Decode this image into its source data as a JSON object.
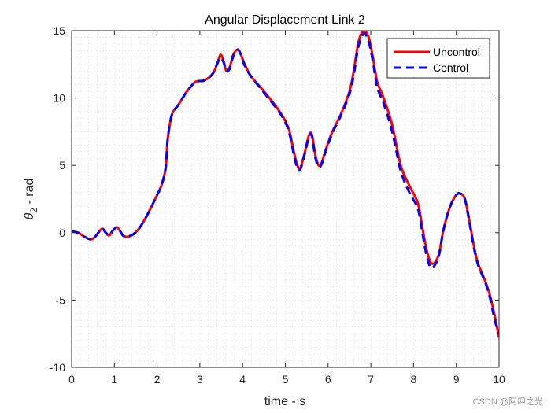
{
  "chart_data": {
    "type": "line",
    "title": "Angular Displacement Link 2",
    "xlabel": "time - s",
    "ylabel_main": "θ",
    "ylabel_sub": "2",
    "ylabel_rest": " - rad",
    "xlim": [
      0,
      10
    ],
    "ylim": [
      -10,
      15
    ],
    "xticks": [
      0,
      1,
      2,
      3,
      4,
      5,
      6,
      7,
      8,
      9,
      10
    ],
    "yticks": [
      -10,
      -5,
      0,
      5,
      10,
      15
    ],
    "grid": "minor-dotted",
    "legend_position": "top-right",
    "colors": {
      "uncontrol": "#ff0000",
      "control": "#0000ff",
      "axis": "#262626",
      "grid": "#d0d0d0"
    },
    "series": [
      {
        "name": "Uncontrol",
        "style": "solid",
        "color": "#ff0000",
        "x": [
          0,
          0.15,
          0.3,
          0.45,
          0.55,
          0.65,
          0.72,
          0.8,
          0.88,
          0.95,
          1.05,
          1.12,
          1.2,
          1.3,
          1.45,
          1.6,
          1.8,
          2.0,
          2.1,
          2.2,
          2.25,
          2.35,
          2.5,
          2.7,
          2.9,
          3.1,
          3.3,
          3.4,
          3.48,
          3.55,
          3.62,
          3.7,
          3.78,
          3.88,
          3.95,
          4.05,
          4.2,
          4.5,
          4.8,
          5.0,
          5.1,
          5.2,
          5.28,
          5.35,
          5.45,
          5.55,
          5.62,
          5.7,
          5.78,
          5.85,
          5.95,
          6.1,
          6.3,
          6.5,
          6.6,
          6.7,
          6.78,
          6.85,
          6.95,
          7.05,
          7.15,
          7.3,
          7.5,
          7.7,
          7.9,
          8.1,
          8.2,
          8.3,
          8.4,
          8.5,
          8.6,
          8.7,
          8.85,
          9.0,
          9.1,
          9.2,
          9.3,
          9.4,
          9.5,
          9.6,
          9.7,
          9.8,
          9.9,
          10.0
        ],
        "y": [
          0.1,
          0.0,
          -0.3,
          -0.5,
          -0.3,
          0.1,
          0.3,
          0.0,
          -0.2,
          0.1,
          0.4,
          0.2,
          -0.2,
          -0.3,
          -0.1,
          0.4,
          1.5,
          2.8,
          3.5,
          4.8,
          7.0,
          8.8,
          9.5,
          10.5,
          11.2,
          11.3,
          11.8,
          12.5,
          13.2,
          12.8,
          12.0,
          12.3,
          13.2,
          13.6,
          13.3,
          12.5,
          11.6,
          10.5,
          9.3,
          8.3,
          7.5,
          6.0,
          5.0,
          4.8,
          5.9,
          7.2,
          7.3,
          5.8,
          5.0,
          5.2,
          6.2,
          7.5,
          8.8,
          10.5,
          12.0,
          14.0,
          14.8,
          15.0,
          14.5,
          13.0,
          11.2,
          10.0,
          8.0,
          5.0,
          3.5,
          2.2,
          0.5,
          -1.2,
          -2.2,
          -2.2,
          -1.5,
          0.2,
          1.9,
          2.8,
          2.9,
          2.5,
          1.0,
          -0.8,
          -2.2,
          -3.0,
          -3.8,
          -4.8,
          -6.2,
          -7.8
        ]
      },
      {
        "name": "Control",
        "style": "dashed",
        "color": "#0000ff",
        "x": [
          0,
          0.15,
          0.3,
          0.45,
          0.55,
          0.65,
          0.72,
          0.8,
          0.88,
          0.95,
          1.05,
          1.12,
          1.2,
          1.3,
          1.45,
          1.6,
          1.8,
          2.0,
          2.1,
          2.2,
          2.25,
          2.35,
          2.5,
          2.7,
          2.9,
          3.1,
          3.3,
          3.4,
          3.48,
          3.55,
          3.62,
          3.7,
          3.78,
          3.88,
          3.95,
          4.05,
          4.2,
          4.5,
          4.8,
          5.0,
          5.1,
          5.2,
          5.28,
          5.35,
          5.45,
          5.55,
          5.62,
          5.7,
          5.78,
          5.85,
          5.95,
          6.1,
          6.3,
          6.5,
          6.6,
          6.7,
          6.78,
          6.85,
          6.95,
          7.05,
          7.15,
          7.3,
          7.5,
          7.7,
          7.9,
          8.1,
          8.2,
          8.3,
          8.4,
          8.5,
          8.6,
          8.7,
          8.85,
          9.0,
          9.1,
          9.2,
          9.3,
          9.4,
          9.5,
          9.6,
          9.7,
          9.8,
          9.9,
          10.0
        ],
        "y": [
          0.1,
          0.0,
          -0.3,
          -0.5,
          -0.3,
          0.1,
          0.3,
          0.0,
          -0.2,
          0.1,
          0.4,
          0.2,
          -0.2,
          -0.3,
          -0.1,
          0.4,
          1.5,
          2.8,
          3.5,
          4.8,
          7.0,
          8.8,
          9.5,
          10.5,
          11.2,
          11.3,
          11.8,
          12.5,
          13.0,
          12.7,
          12.0,
          12.2,
          13.1,
          13.6,
          13.3,
          12.4,
          11.6,
          10.4,
          9.2,
          8.2,
          7.3,
          5.8,
          4.8,
          4.7,
          5.8,
          7.1,
          7.2,
          5.6,
          4.9,
          5.1,
          6.1,
          7.4,
          8.7,
          10.3,
          11.7,
          13.7,
          14.5,
          14.8,
          14.2,
          12.7,
          10.8,
          9.6,
          7.5,
          4.6,
          3.0,
          1.8,
          0.1,
          -1.6,
          -2.6,
          -2.4,
          -1.6,
          0.2,
          1.9,
          2.8,
          2.9,
          2.5,
          0.9,
          -0.9,
          -2.3,
          -3.1,
          -3.9,
          -5.0,
          -6.5,
          -7.5
        ]
      }
    ]
  },
  "watermark": "CSDN @阿呷之光"
}
